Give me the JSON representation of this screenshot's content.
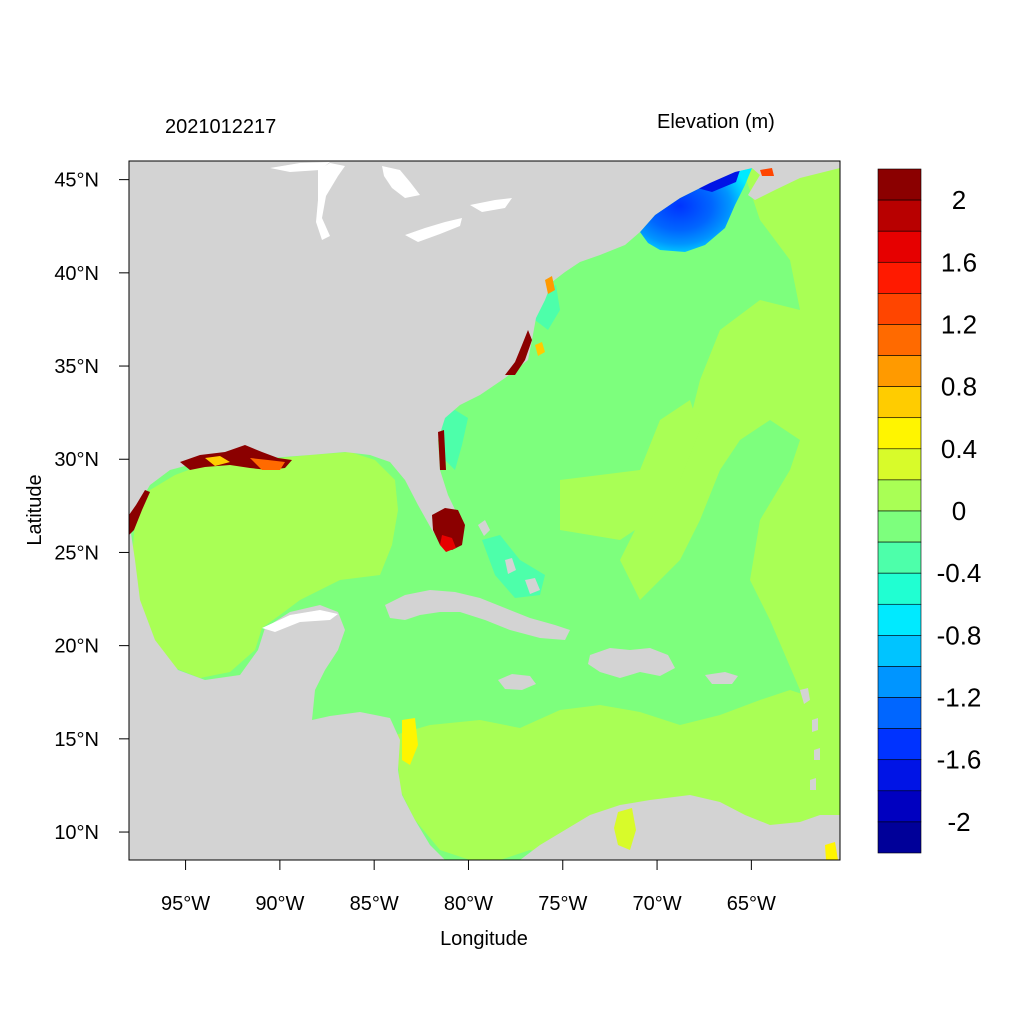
{
  "header": {
    "date_label": "2021012217",
    "field_label": "Elevation (m)"
  },
  "axes": {
    "xlabel": "Longitude",
    "ylabel": "Latitude",
    "lon_range": [
      -98,
      -60.3
    ],
    "lat_range": [
      8.5,
      46
    ],
    "lon_ticks": [
      {
        "value": -95,
        "label": "95°W"
      },
      {
        "value": -90,
        "label": "90°W"
      },
      {
        "value": -85,
        "label": "85°W"
      },
      {
        "value": -80,
        "label": "80°W"
      },
      {
        "value": -75,
        "label": "75°W"
      },
      {
        "value": -70,
        "label": "70°W"
      },
      {
        "value": -65,
        "label": "65°W"
      }
    ],
    "lat_ticks": [
      {
        "value": 45,
        "label": "45°N"
      },
      {
        "value": 40,
        "label": "40°N"
      },
      {
        "value": 35,
        "label": "35°N"
      },
      {
        "value": 30,
        "label": "30°N"
      },
      {
        "value": 25,
        "label": "25°N"
      },
      {
        "value": 20,
        "label": "20°N"
      },
      {
        "value": 15,
        "label": "15°N"
      },
      {
        "value": 10,
        "label": "10°N"
      }
    ]
  },
  "colors": {
    "land": "#d3d3d3",
    "ocean_base": "#7dff7d",
    "ocean_positive": "#a9ff55"
  },
  "colorbar": {
    "levels": [
      {
        "color": "#8b0000"
      },
      {
        "color": "#b80000"
      },
      {
        "color": "#e60000"
      },
      {
        "color": "#ff1a00"
      },
      {
        "color": "#ff4500"
      },
      {
        "color": "#ff6a00"
      },
      {
        "color": "#ff9a00"
      },
      {
        "color": "#ffcc00"
      },
      {
        "color": "#fff500"
      },
      {
        "color": "#d8fb2a"
      },
      {
        "color": "#a9ff55"
      },
      {
        "color": "#7dff7d"
      },
      {
        "color": "#4dffaa"
      },
      {
        "color": "#20ffd2"
      },
      {
        "color": "#00eaff"
      },
      {
        "color": "#00c4ff"
      },
      {
        "color": "#0095ff"
      },
      {
        "color": "#0066ff"
      },
      {
        "color": "#0033ff"
      },
      {
        "color": "#0014e6"
      },
      {
        "color": "#0000c0"
      },
      {
        "color": "#000099"
      }
    ],
    "labels": [
      "2",
      "1.6",
      "1.2",
      "0.8",
      "0.4",
      "0",
      "-0.4",
      "-0.8",
      "-1.2",
      "-1.6",
      "-2"
    ]
  },
  "map_regions": [
    {
      "name": "gulf-of-mexico",
      "level": "0 to 0.2"
    },
    {
      "name": "caribbean-south",
      "level": "0 to 0.2"
    },
    {
      "name": "gulf-of-maine",
      "level": "-2 to -1.2"
    },
    {
      "name": "south-florida",
      "level": "above 2"
    }
  ]
}
